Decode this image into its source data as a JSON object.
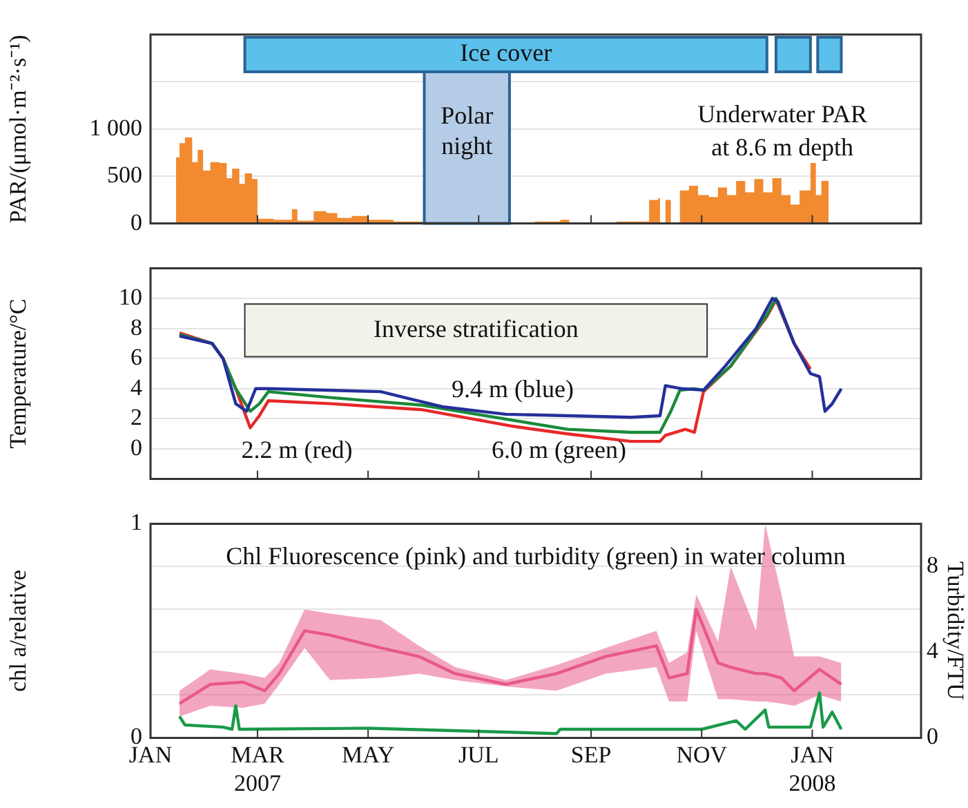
{
  "chart_data": [
    {
      "type": "area",
      "ylabel": "PAR/(μmol·m⁻²·s⁻¹)",
      "xlim": [
        "2007-01-01",
        "2008-03-01"
      ],
      "xticks": [
        {
          "value": "2007-01-01",
          "label": null
        },
        {
          "value": "2007-03-01",
          "label": null
        },
        {
          "value": "2007-05-01",
          "label": null
        },
        {
          "value": "2007-07-01",
          "label": null
        },
        {
          "value": "2007-09-01",
          "label": null
        },
        {
          "value": "2007-11-01",
          "label": null
        },
        {
          "value": "2008-01-01",
          "label": null
        }
      ],
      "ylim": [
        0,
        2000
      ],
      "yticks": [
        0,
        500,
        {
          "value": 1000,
          "label": "1 000"
        },
        {
          "value": 1500,
          "label": null
        },
        {
          "value": 2000,
          "label": null
        }
      ],
      "tick_labels": "y",
      "grid": "y",
      "annotations": [
        "Underwater PAR\nat 8.6 m depth"
      ],
      "bands": [
        {
          "axis": "x",
          "from": "2007-02-22",
          "to": "2007-12-07",
          "label": "Ice cover",
          "color": "#5bc0eb"
        },
        {
          "axis": "x",
          "from": "2007-12-12",
          "to": "2007-12-31",
          "label": null,
          "color": "#5bc0eb"
        },
        {
          "axis": "x",
          "from": "2008-01-04",
          "to": "2008-01-17",
          "label": null,
          "color": "#5bc0eb"
        },
        {
          "axis": "x",
          "from": "2007-06-01",
          "to": "2007-07-18",
          "label": "Polar\nnight",
          "color": "#b5cce6"
        }
      ],
      "series": [
        {
          "color": "#f28a30",
          "x": [
            "2007-01-15",
            "2007-01-17",
            "2007-01-20",
            "2007-01-24",
            "2007-01-27",
            "2007-01-30",
            "2007-02-03",
            "2007-02-08",
            "2007-02-12",
            "2007-02-15",
            "2007-02-19",
            "2007-02-22",
            "2007-02-26",
            "2007-03-01",
            "2007-03-10",
            "2007-03-20",
            "2007-03-23",
            "2007-04-01",
            "2007-04-08",
            "2007-04-14",
            "2007-04-22",
            "2007-05-01",
            "2007-05-15",
            "2007-05-31",
            "2007-07-18",
            "2007-08-01",
            "2007-08-15",
            "2007-08-20",
            "2007-09-15",
            "2007-10-02",
            "2007-10-03",
            "2007-10-08",
            "2007-10-09",
            "2007-10-12",
            "2007-10-15",
            "2007-10-20",
            "2007-10-25",
            "2007-10-30",
            "2007-11-05",
            "2007-11-10",
            "2007-11-15",
            "2007-11-20",
            "2007-11-25",
            "2007-11-30",
            "2007-12-05",
            "2007-12-10",
            "2007-12-15",
            "2007-12-20",
            "2007-12-25",
            "2007-12-31",
            "2008-01-03",
            "2008-01-06",
            "2008-01-10"
          ],
          "values": [
            700,
            850,
            910,
            650,
            780,
            560,
            650,
            640,
            480,
            580,
            420,
            530,
            470,
            50,
            40,
            150,
            30,
            130,
            110,
            60,
            80,
            40,
            20,
            0,
            10,
            20,
            40,
            10,
            20,
            20,
            250,
            270,
            0,
            250,
            0,
            350,
            400,
            300,
            280,
            380,
            300,
            450,
            330,
            470,
            330,
            480,
            300,
            200,
            350,
            640,
            300,
            450,
            0
          ]
        }
      ]
    },
    {
      "type": "line",
      "ylabel": "Temperature/°C",
      "xlim": [
        "2007-01-01",
        "2008-03-01"
      ],
      "xticks": [
        {
          "value": "2007-01-01",
          "label": null
        },
        {
          "value": "2007-03-01",
          "label": null
        },
        {
          "value": "2007-05-01",
          "label": null
        },
        {
          "value": "2007-07-01",
          "label": null
        },
        {
          "value": "2007-09-01",
          "label": null
        },
        {
          "value": "2007-11-01",
          "label": null
        },
        {
          "value": "2008-01-01",
          "label": null
        }
      ],
      "ylim": [
        -2,
        12
      ],
      "yticks": [
        {
          "value": -2,
          "label": null
        },
        0,
        2,
        4,
        6,
        8,
        10,
        {
          "value": 12,
          "label": null
        }
      ],
      "tick_labels": "y",
      "grid": "y",
      "bands": [
        {
          "axis": "x",
          "from": "2007-02-22",
          "to": "2007-11-04",
          "label": "Inverse stratification",
          "color": "#f3f2ea"
        }
      ],
      "series": [
        {
          "name": "2.2 m (red)",
          "color": "#e8282a",
          "x": [
            "2007-01-17",
            "2007-02-04",
            "2007-02-10",
            "2007-02-17",
            "2007-02-25",
            "2007-03-02",
            "2007-03-07",
            "2007-04-11",
            "2007-05-31",
            "2007-07-20",
            "2007-08-19",
            "2007-09-23",
            "2007-10-09",
            "2007-10-12",
            "2007-10-23",
            "2007-10-28",
            "2007-11-02",
            "2007-11-17",
            "2007-12-07",
            "2007-12-12",
            "2007-12-22",
            "2007-12-31"
          ],
          "values": [
            7.7,
            7.0,
            6.0,
            4.0,
            1.4,
            2.2,
            3.2,
            3.0,
            2.6,
            1.5,
            1.0,
            0.5,
            0.5,
            0.9,
            1.3,
            1.1,
            3.8,
            5.5,
            8.8,
            9.9,
            7.0,
            5.3
          ]
        },
        {
          "name": "6.0 m (green)",
          "color": "#1a8a3a",
          "x": [
            "2007-01-17",
            "2007-02-04",
            "2007-02-10",
            "2007-02-17",
            "2007-02-25",
            "2007-03-02",
            "2007-03-07",
            "2007-04-11",
            "2007-05-31",
            "2007-07-20",
            "2007-08-19",
            "2007-09-23",
            "2007-10-09",
            "2007-10-15",
            "2007-10-20",
            "2007-10-28",
            "2007-11-02",
            "2007-11-17",
            "2007-12-07",
            "2007-12-12",
            "2007-12-22"
          ],
          "values": [
            7.6,
            7.0,
            6.0,
            4.0,
            2.5,
            3.0,
            3.8,
            3.4,
            2.9,
            1.9,
            1.3,
            1.1,
            1.1,
            2.5,
            3.9,
            4.0,
            3.9,
            5.5,
            8.9,
            10.0,
            7.0
          ]
        },
        {
          "name": "9.4 m (blue)",
          "color": "#24309a",
          "x": [
            "2007-01-17",
            "2007-02-04",
            "2007-02-10",
            "2007-02-17",
            "2007-02-23",
            "2007-02-28",
            "2007-03-07",
            "2007-05-08",
            "2007-05-25",
            "2007-06-11",
            "2007-07-16",
            "2007-08-20",
            "2007-09-23",
            "2007-10-09",
            "2007-10-12",
            "2007-10-21",
            "2007-11-02",
            "2007-11-14",
            "2007-12-01",
            "2007-12-10",
            "2007-12-13",
            "2007-12-22",
            "2007-12-31",
            "2008-01-05",
            "2008-01-08",
            "2008-01-12",
            "2008-01-17"
          ],
          "values": [
            7.5,
            7.0,
            6.0,
            3.0,
            2.5,
            4.0,
            4.0,
            3.8,
            3.3,
            2.8,
            2.3,
            2.2,
            2.1,
            2.2,
            4.2,
            4.0,
            3.9,
            5.5,
            8.0,
            10.0,
            9.8,
            7.0,
            5.0,
            4.8,
            2.5,
            3.0,
            4.0
          ]
        }
      ]
    },
    {
      "type": "line",
      "title": "Chl Fluorescence (pink) and turbidity (green) in water column",
      "ylabel": "chl a/relative",
      "y2label": "Turbidity/FTU",
      "xlim": [
        "2007-01-01",
        "2008-03-01"
      ],
      "xticks": [
        {
          "value": "2007-01-01",
          "label": "JAN"
        },
        {
          "value": "2007-03-01",
          "label": "MAR\n2007"
        },
        {
          "value": "2007-05-01",
          "label": "MAY"
        },
        {
          "value": "2007-07-01",
          "label": "JUL"
        },
        {
          "value": "2007-09-01",
          "label": "SEP"
        },
        {
          "value": "2007-11-01",
          "label": "NOV"
        },
        {
          "value": "2008-01-01",
          "label": "JAN\n2008"
        }
      ],
      "ylim": [
        0,
        1
      ],
      "yticks": [
        0,
        {
          "value": 0.2,
          "label": null
        },
        {
          "value": 0.4,
          "label": null
        },
        {
          "value": 0.6,
          "label": null
        },
        {
          "value": 0.8,
          "label": null
        },
        1
      ],
      "y2lim": [
        0,
        10
      ],
      "y2ticks": [
        0,
        4,
        8
      ],
      "grid": "y",
      "series": [
        {
          "color": "#e8588a",
          "x": [
            "2007-01-17",
            "2007-02-03",
            "2007-02-21",
            "2007-03-05",
            "2007-03-13",
            "2007-03-27",
            "2007-04-10",
            "2007-05-08",
            "2007-05-29",
            "2007-06-18",
            "2007-07-16",
            "2007-08-13",
            "2007-09-09",
            "2007-10-07",
            "2007-10-14",
            "2007-10-24",
            "2007-10-29",
            "2007-11-10",
            "2007-11-17",
            "2007-12-01",
            "2007-12-06",
            "2007-12-15",
            "2007-12-22",
            "2008-01-05",
            "2008-01-17"
          ],
          "values": [
            0.16,
            0.25,
            0.26,
            0.22,
            0.3,
            0.5,
            0.48,
            0.42,
            0.38,
            0.3,
            0.25,
            0.3,
            0.38,
            0.43,
            0.28,
            0.3,
            0.6,
            0.35,
            0.33,
            0.3,
            0.3,
            0.28,
            0.22,
            0.32,
            0.25
          ],
          "lower": [
            0.1,
            0.15,
            0.14,
            0.16,
            0.25,
            0.42,
            0.27,
            0.28,
            0.3,
            0.27,
            0.24,
            0.22,
            0.3,
            0.33,
            0.17,
            0.17,
            0.5,
            0.18,
            0.18,
            0.17,
            0.17,
            0.16,
            0.15,
            0.2,
            0.17
          ],
          "upper": [
            0.22,
            0.32,
            0.3,
            0.28,
            0.35,
            0.6,
            0.58,
            0.55,
            0.43,
            0.33,
            0.27,
            0.34,
            0.42,
            0.5,
            0.35,
            0.4,
            0.67,
            0.45,
            0.8,
            0.5,
            1.0,
            0.67,
            0.38,
            0.38,
            0.35
          ]
        },
        {
          "color": "#1a9a4a",
          "axis": "y2",
          "x": [
            "2007-01-17",
            "2007-01-20",
            "2007-02-10",
            "2007-02-15",
            "2007-02-17",
            "2007-02-19",
            "2007-05-01",
            "2007-08-13",
            "2007-08-15",
            "2007-11-01",
            "2007-11-20",
            "2007-11-25",
            "2007-12-06",
            "2007-12-08",
            "2007-12-31",
            "2008-01-05",
            "2008-01-07",
            "2008-01-12",
            "2008-01-17"
          ],
          "values": [
            1.0,
            0.6,
            0.5,
            0.4,
            1.5,
            0.4,
            0.45,
            0.2,
            0.4,
            0.4,
            0.8,
            0.4,
            1.3,
            0.5,
            0.5,
            2.1,
            0.5,
            1.2,
            0.4
          ]
        }
      ]
    }
  ]
}
